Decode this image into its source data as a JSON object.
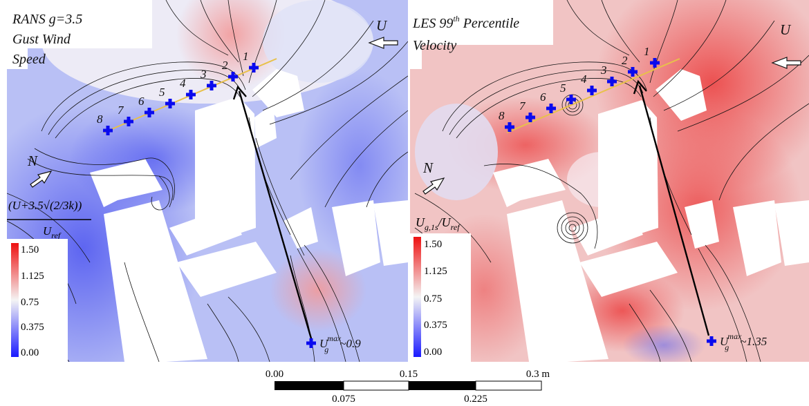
{
  "left_panel": {
    "title_lines": [
      "RANS g=3.5",
      "Gust Wind",
      "Speed"
    ],
    "wind_label": "U",
    "north_label": "N",
    "colorbar_title_numerator": "(U+3.5√(2/3k))",
    "colorbar_title_denominator": "U",
    "colorbar_title_denominator_sub": "ref",
    "colorbar_ticks": [
      "1.50",
      "1.125",
      "0.75",
      "0.375",
      "0.00"
    ],
    "umax_prefix": "U",
    "umax_sup": "max",
    "umax_sub": "g",
    "umax_value": "~0.9",
    "points": [
      "1",
      "2",
      "3",
      "4",
      "5",
      "6",
      "7",
      "8"
    ]
  },
  "right_panel": {
    "title_line1": "LES 99",
    "title_sup": "th",
    "title_line1_rest": " Percentile",
    "title_line2": "Velocity",
    "wind_label": "U",
    "north_label": "N",
    "colorbar_title_main": "U",
    "colorbar_title_sub": "g,1s",
    "colorbar_title_slash": "/U",
    "colorbar_title_sub2": "ref",
    "colorbar_ticks": [
      "1.50",
      "1.125",
      "0.75",
      "0.375",
      "0.00"
    ],
    "umax_prefix": "U",
    "umax_sup": "max",
    "umax_sub": "g",
    "umax_value": "~1.35",
    "points": [
      "1",
      "2",
      "3",
      "4",
      "5",
      "6",
      "7",
      "8"
    ]
  },
  "scale_bar": {
    "top_labels": [
      "0.00",
      "0.15",
      "0.3 m"
    ],
    "bottom_labels": [
      "0.075",
      "0.225"
    ]
  },
  "colors": {
    "low": "#1a1aff",
    "mid": "#f2f2f2",
    "high": "#ee1111",
    "marker": "#0a0aee",
    "measure_line": "#e8c14a"
  }
}
